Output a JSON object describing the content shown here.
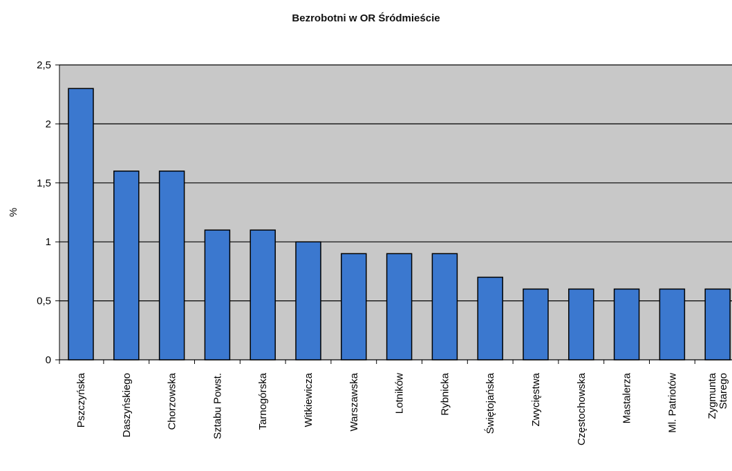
{
  "chart_data": {
    "type": "bar",
    "title": "Bezrobotni w OR Śródmieście",
    "xlabel": "",
    "ylabel": "%",
    "ylim": [
      0,
      2.5
    ],
    "yticks": [
      0,
      0.5,
      1,
      1.5,
      2,
      2.5
    ],
    "ytick_labels": [
      "0",
      "0,5",
      "1",
      "1,5",
      "2",
      "2,5"
    ],
    "grid": true,
    "legend": "none",
    "categories": [
      "Pszczyńska",
      "Daszyńskiego",
      "Chorzowska",
      "Sztabu Powst.",
      "Tarnogórska",
      "Witkiewicza",
      "Warszawska",
      "Lotników",
      "Rybnicka",
      "Świętojańska",
      "Zwycięstwa",
      "Częstochowska",
      "Mastalerza",
      "Ml. Patriotów",
      "Zygmunta Starego"
    ],
    "values": [
      2.3,
      1.6,
      1.6,
      1.1,
      1.1,
      1.0,
      0.9,
      0.9,
      0.9,
      0.7,
      0.6,
      0.6,
      0.6,
      0.6,
      0.6
    ],
    "colors": {
      "bar": "#3b78cf",
      "plot_background": "#c8c8c8",
      "gridline": "#000000",
      "axis": "#000000"
    }
  }
}
